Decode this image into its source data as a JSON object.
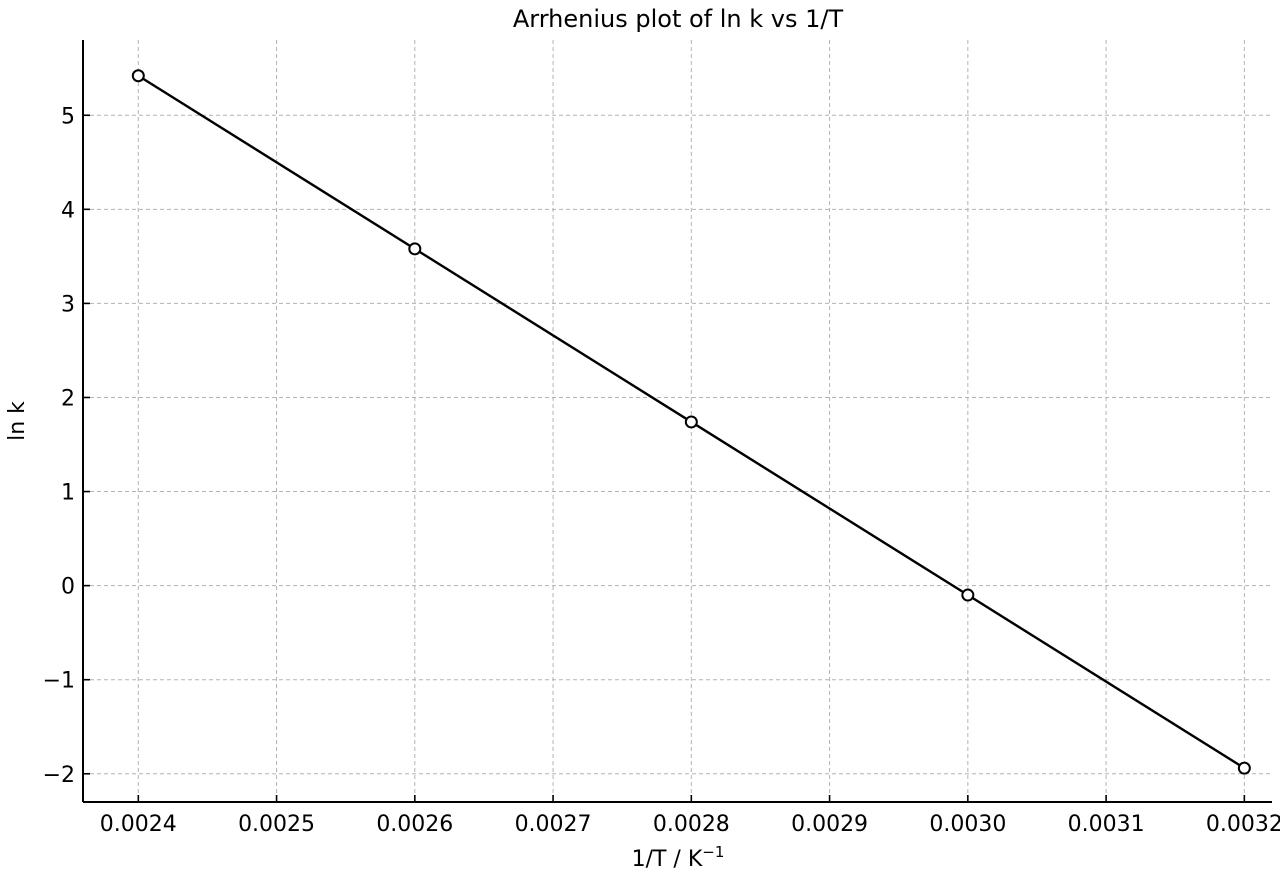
{
  "chart_data": {
    "type": "line",
    "title": "Arrhenius plot of ln k vs 1/T",
    "xlabel": "1/T / K",
    "xlabel_superscript": "−1",
    "ylabel": "ln k",
    "xlim": [
      0.00236,
      0.00322
    ],
    "ylim": [
      -2.3,
      5.8
    ],
    "x_ticks": [
      0.0024,
      0.0025,
      0.0026,
      0.0027,
      0.0028,
      0.0029,
      0.003,
      0.0031,
      0.0032
    ],
    "x_tick_labels": [
      "0.0024",
      "0.0025",
      "0.0026",
      "0.0027",
      "0.0028",
      "0.0029",
      "0.0030",
      "0.0031",
      "0.0032"
    ],
    "y_ticks": [
      -2,
      -1,
      0,
      1,
      2,
      3,
      4,
      5
    ],
    "y_tick_labels": [
      "−2",
      "−1",
      "0",
      "1",
      "2",
      "3",
      "4",
      "5"
    ],
    "grid": true,
    "series": [
      {
        "x": [
          0.0024,
          0.0026,
          0.0028,
          0.003,
          0.0032
        ],
        "y": [
          5.42,
          3.58,
          1.74,
          -0.1,
          -1.94
        ],
        "line_color": "#000000",
        "marker": "open-circle"
      }
    ]
  }
}
